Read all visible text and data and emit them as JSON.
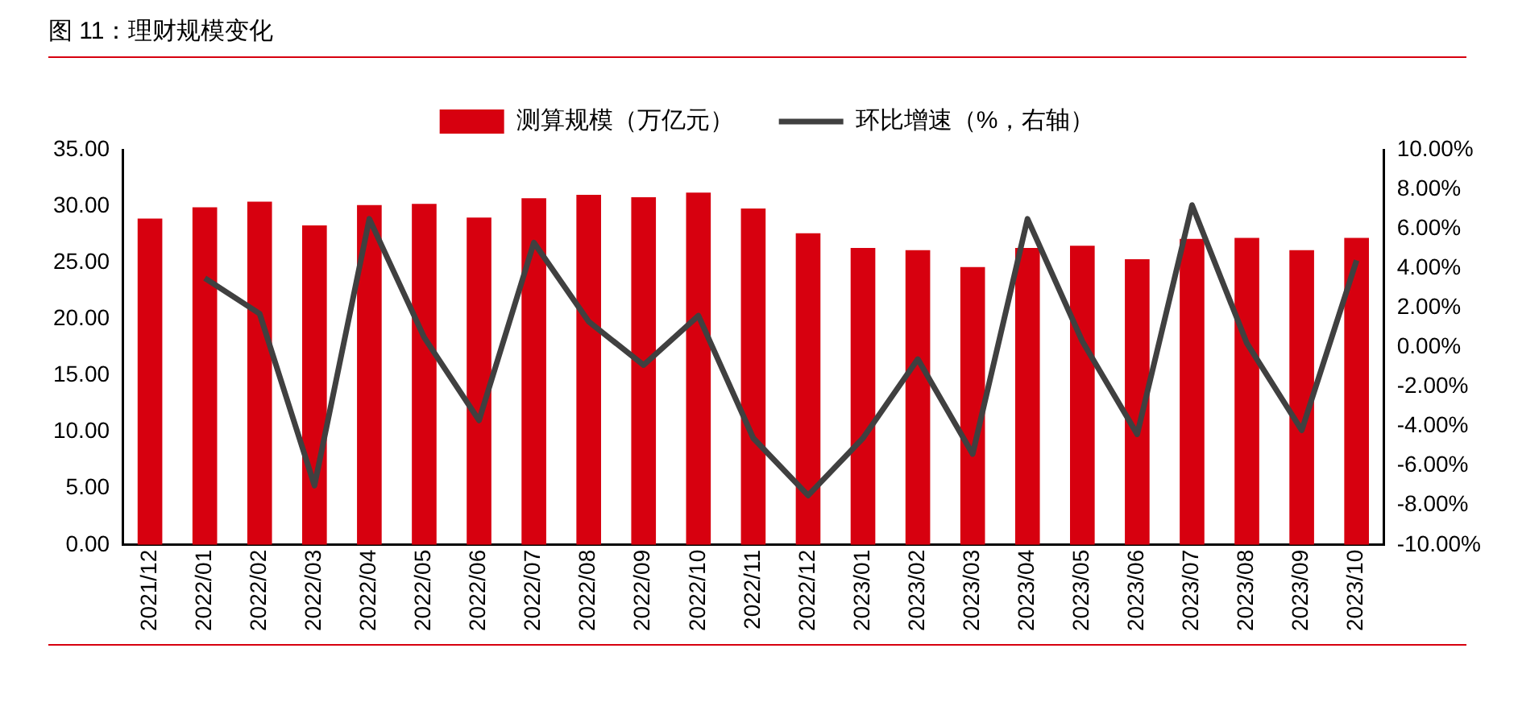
{
  "chart_data": {
    "type": "bar",
    "title": "图 11：理财规模变化",
    "categories": [
      "2021/12",
      "2022/01",
      "2022/02",
      "2022/03",
      "2022/04",
      "2022/05",
      "2022/06",
      "2022/07",
      "2022/08",
      "2022/09",
      "2022/10",
      "2022/11",
      "2022/12",
      "2023/01",
      "2023/02",
      "2023/03",
      "2023/04",
      "2023/05",
      "2023/06",
      "2023/07",
      "2023/08",
      "2023/09",
      "2023/10"
    ],
    "series": [
      {
        "name": "测算规模（万亿元）",
        "color": "#d7000f",
        "values": [
          28.9,
          29.9,
          30.4,
          28.3,
          30.1,
          30.2,
          29.0,
          30.7,
          31.0,
          30.8,
          31.2,
          29.8,
          27.6,
          26.3,
          26.1,
          24.6,
          26.3,
          26.5,
          25.3,
          27.1,
          27.2,
          26.1,
          27.2
        ]
      },
      {
        "name": "环比增速（%，右轴）",
        "type": "line",
        "axis": "y2",
        "color": "#404040",
        "values": [
          null,
          3.5,
          1.7,
          -7.0,
          6.5,
          0.5,
          -3.7,
          5.3,
          1.3,
          -0.9,
          1.6,
          -4.6,
          -7.5,
          -4.6,
          -0.6,
          -5.4,
          6.5,
          0.3,
          -4.4,
          7.2,
          0.2,
          -4.2,
          4.4
        ]
      }
    ],
    "ylim": [
      0,
      35
    ],
    "yticks": [
      {
        "value": 0,
        "label": "0.00"
      },
      {
        "value": 5,
        "label": "5.00"
      },
      {
        "value": 10,
        "label": "10.00"
      },
      {
        "value": 15,
        "label": "15.00"
      },
      {
        "value": 20,
        "label": "20.00"
      },
      {
        "value": 25,
        "label": "25.00"
      },
      {
        "value": 30,
        "label": "30.00"
      },
      {
        "value": 35,
        "label": "35.00"
      }
    ],
    "y2lim": [
      -10,
      10
    ],
    "y2ticks": [
      {
        "value": -10,
        "label": "-10.00%"
      },
      {
        "value": -8,
        "label": "-8.00%"
      },
      {
        "value": -6,
        "label": "-6.00%"
      },
      {
        "value": -4,
        "label": "-4.00%"
      },
      {
        "value": -2,
        "label": "-2.00%"
      },
      {
        "value": 0,
        "label": "0.00%"
      },
      {
        "value": 2,
        "label": "2.00%"
      },
      {
        "value": 4,
        "label": "4.00%"
      },
      {
        "value": 6,
        "label": "6.00%"
      },
      {
        "value": 8,
        "label": "8.00%"
      },
      {
        "value": 10,
        "label": "10.00%"
      }
    ],
    "grid": false,
    "legend": "top",
    "marker": "none",
    "line_style": "solid"
  }
}
